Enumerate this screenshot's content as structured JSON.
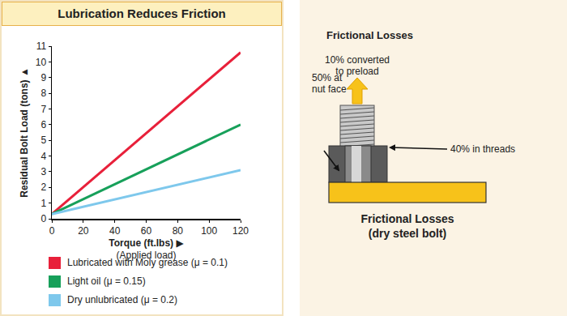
{
  "chart_data": {
    "type": "line",
    "title": "Lubrication Reduces Friction",
    "x_label": "Torque (ft.lbs) ▶",
    "x_sublabel": "(Applied load)",
    "y_label": "Residual Bolt Load (tons) ▲",
    "x": [
      0,
      120
    ],
    "series": [
      {
        "name": "Lubricated with Moly grease (μ = 0.1)",
        "color": "#e8203a",
        "values": [
          0.3,
          10.6
        ]
      },
      {
        "name": "Light oil (μ = 0.15)",
        "color": "#17a05a",
        "values": [
          0.3,
          6.0
        ]
      },
      {
        "name": "Dry unlubricated (μ = 0.2)",
        "color": "#7ec8ec",
        "values": [
          0.3,
          3.1
        ]
      }
    ],
    "xlim": [
      0,
      120
    ],
    "ylim": [
      0,
      11
    ],
    "xticks": [
      0,
      20,
      40,
      60,
      80,
      100,
      120
    ],
    "yticks": [
      0,
      1,
      2,
      3,
      4,
      5,
      6,
      7,
      8,
      9,
      10,
      11
    ],
    "grid": false
  },
  "diagram": {
    "title": "Frictional Losses",
    "preload_label": [
      "10% converted",
      "to preload"
    ],
    "nut_face_label": [
      "50% at",
      "nut face"
    ],
    "threads_label": [
      "40% in threads"
    ],
    "caption": [
      "Frictional Losses",
      "(dry steel bolt)"
    ]
  }
}
